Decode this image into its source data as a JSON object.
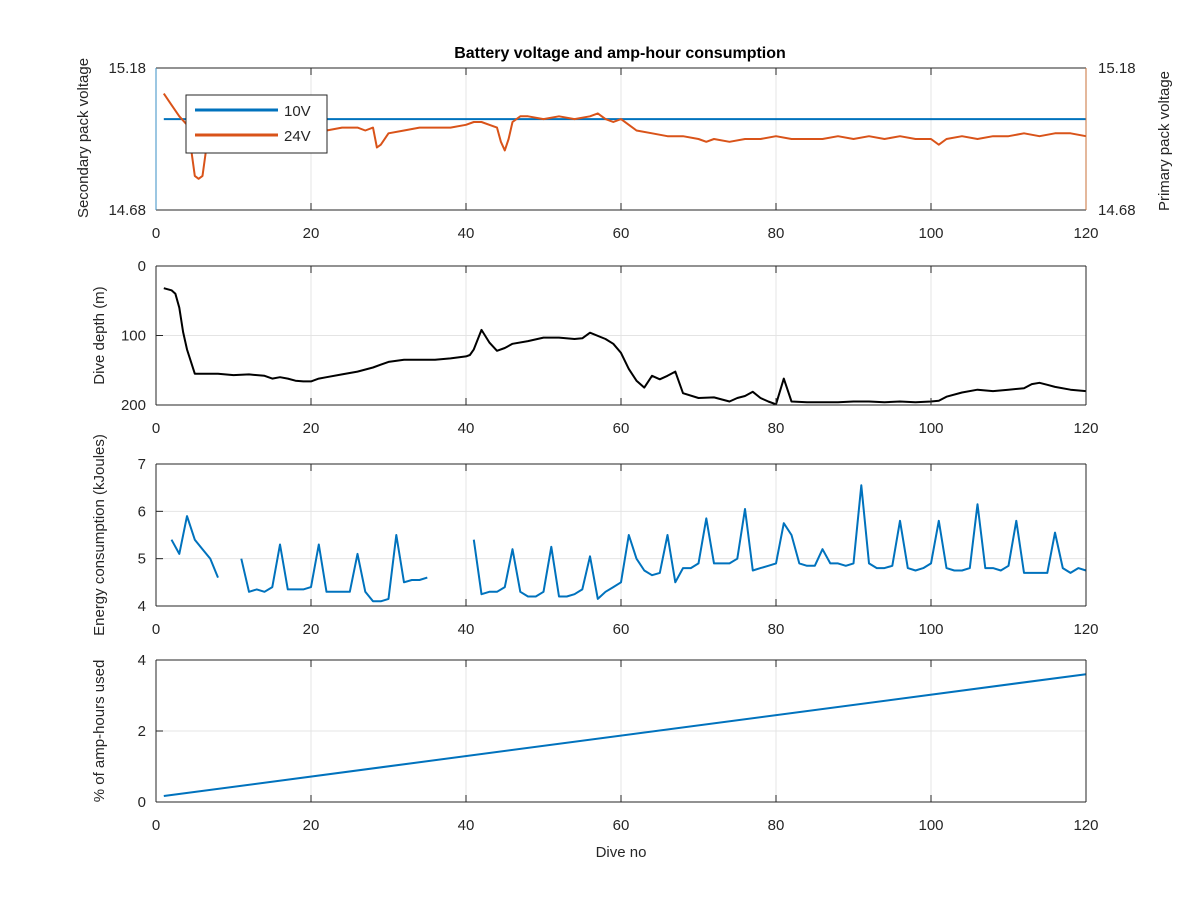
{
  "chart_data": [
    {
      "type": "line",
      "title": "Battery voltage and amp-hour consumption",
      "xlabel": "",
      "ylabel_left": "Secondary pack voltage",
      "ylabel_right": "Primary pack voltage",
      "xlim": [
        0,
        120
      ],
      "ylim_left": [
        14.68,
        15.18
      ],
      "ylim_right": [
        14.68,
        15.18
      ],
      "xticks": [
        "0",
        "20",
        "40",
        "60",
        "80",
        "100",
        "120"
      ],
      "yticks_left": [
        "14.68",
        "15.18"
      ],
      "yticks_right": [
        "14.68",
        "15.18"
      ],
      "grid": true,
      "legend_position": "top-left",
      "left_axis_color": "#3a8fc4",
      "right_axis_color": "#c8703a",
      "series": [
        {
          "name": "10V",
          "axis": "left",
          "color": "#0072bd",
          "x": [
            1,
            120
          ],
          "y": [
            15.0,
            15.0
          ]
        },
        {
          "name": "24V",
          "axis": "right",
          "color": "#d95319",
          "x": [
            1,
            2,
            3,
            4,
            4.5,
            5,
            5.5,
            6,
            6.5,
            7,
            8,
            10,
            12,
            14,
            16,
            18,
            20,
            22,
            24,
            25,
            26,
            27,
            28,
            28.5,
            29,
            30,
            32,
            34,
            36,
            38,
            40,
            41,
            42,
            43,
            44,
            44.5,
            45,
            45.5,
            46,
            47,
            48,
            50,
            52,
            54,
            56,
            57,
            58,
            59,
            60,
            61,
            62,
            64,
            66,
            68,
            70,
            71,
            72,
            74,
            76,
            78,
            80,
            82,
            84,
            86,
            88,
            90,
            92,
            94,
            96,
            98,
            100,
            101,
            102,
            104,
            106,
            108,
            110,
            112,
            114,
            116,
            118,
            120
          ],
          "y": [
            15.09,
            15.05,
            15.01,
            14.98,
            14.9,
            14.8,
            14.79,
            14.8,
            14.9,
            14.97,
            14.98,
            14.97,
            14.96,
            14.97,
            14.96,
            14.97,
            14.97,
            14.96,
            14.97,
            14.97,
            14.97,
            14.96,
            14.97,
            14.9,
            14.91,
            14.95,
            14.96,
            14.97,
            14.97,
            14.97,
            14.98,
            14.99,
            14.99,
            14.98,
            14.97,
            14.92,
            14.89,
            14.93,
            14.99,
            15.01,
            15.01,
            15.0,
            15.01,
            15.0,
            15.01,
            15.02,
            15.0,
            14.99,
            15.0,
            14.98,
            14.96,
            14.95,
            14.94,
            14.94,
            14.93,
            14.92,
            14.93,
            14.92,
            14.93,
            14.93,
            14.94,
            14.93,
            14.93,
            14.93,
            14.94,
            14.93,
            14.94,
            14.93,
            14.94,
            14.93,
            14.93,
            14.91,
            14.93,
            14.94,
            14.93,
            14.94,
            14.94,
            14.95,
            14.94,
            14.95,
            14.95,
            14.94
          ]
        }
      ]
    },
    {
      "type": "line",
      "title": "",
      "xlabel": "",
      "ylabel": "Dive depth (m)",
      "xlim": [
        0,
        120
      ],
      "ylim": [
        0,
        200
      ],
      "y_reversed": true,
      "xticks": [
        "0",
        "20",
        "40",
        "60",
        "80",
        "100",
        "120"
      ],
      "yticks": [
        "0",
        "100",
        "200"
      ],
      "grid": true,
      "series": [
        {
          "color": "#000000",
          "x": [
            1,
            2,
            2.5,
            3,
            3.5,
            4,
            5,
            6,
            8,
            10,
            12,
            14,
            15,
            16,
            17,
            18,
            19,
            20,
            21,
            22,
            24,
            26,
            28,
            30,
            32,
            34,
            36,
            38,
            40,
            40.5,
            41,
            42,
            43,
            44,
            45,
            46,
            48,
            50,
            52,
            54,
            55,
            56,
            58,
            59,
            60,
            61,
            62,
            63,
            64,
            65,
            66,
            67,
            68,
            70,
            72,
            74,
            75,
            76,
            77,
            78,
            79,
            80,
            81,
            82,
            84,
            86,
            88,
            90,
            92,
            94,
            96,
            98,
            100,
            101,
            102,
            104,
            106,
            108,
            110,
            112,
            113,
            114,
            115,
            116,
            118,
            120
          ],
          "y": [
            32,
            35,
            40,
            60,
            95,
            120,
            155,
            155,
            155,
            157,
            156,
            158,
            162,
            160,
            162,
            165,
            166,
            166,
            162,
            160,
            156,
            152,
            146,
            138,
            135,
            135,
            135,
            133,
            130,
            128,
            120,
            92,
            110,
            122,
            118,
            112,
            108,
            103,
            103,
            105,
            104,
            96,
            105,
            112,
            125,
            148,
            165,
            175,
            158,
            163,
            158,
            152,
            183,
            190,
            189,
            195,
            190,
            187,
            181,
            190,
            195,
            199,
            162,
            195,
            196,
            196,
            196,
            195,
            195,
            196,
            195,
            196,
            195,
            194,
            188,
            182,
            178,
            180,
            178,
            176,
            170,
            168,
            171,
            174,
            178,
            180
          ]
        }
      ]
    },
    {
      "type": "line",
      "title": "",
      "xlabel": "",
      "ylabel": "Energy consumption (kJoules)",
      "xlim": [
        0,
        120
      ],
      "ylim": [
        4,
        7
      ],
      "xticks": [
        "0",
        "20",
        "40",
        "60",
        "80",
        "100",
        "120"
      ],
      "yticks": [
        "4",
        "5",
        "6",
        "7"
      ],
      "grid": true,
      "segments": [
        {
          "x": [
            2,
            3,
            4,
            5,
            6,
            7,
            8
          ],
          "y": [
            5.4,
            5.1,
            5.9,
            5.4,
            5.2,
            5.0,
            4.6
          ]
        },
        {
          "x": [
            11,
            12,
            13,
            14,
            15,
            16,
            17,
            18,
            19,
            20,
            21,
            22,
            23,
            24,
            25,
            26,
            27,
            28,
            29,
            30,
            31,
            32,
            33,
            34,
            35
          ],
          "y": [
            5.0,
            4.3,
            4.35,
            4.3,
            4.4,
            5.3,
            4.35,
            4.35,
            4.35,
            4.4,
            5.3,
            4.3,
            4.3,
            4.3,
            4.3,
            5.1,
            4.3,
            4.1,
            4.1,
            4.15,
            5.5,
            4.5,
            4.55,
            4.55,
            4.6
          ]
        },
        {
          "x": [
            41,
            42,
            43,
            44,
            45,
            46,
            47,
            48,
            49,
            50,
            51,
            52,
            53,
            54,
            55,
            56,
            57,
            58,
            59,
            60,
            61,
            62,
            63,
            64,
            65,
            66,
            67,
            68,
            69,
            70,
            71,
            72,
            73,
            74,
            75,
            76,
            77,
            78,
            79,
            80,
            81,
            82,
            83,
            84,
            85,
            86,
            87,
            88,
            89,
            90,
            91,
            92,
            93,
            94,
            95,
            96,
            97,
            98,
            99,
            100,
            101,
            102,
            103,
            104,
            105,
            106,
            107,
            108,
            109,
            110,
            111,
            112,
            113,
            114,
            115,
            116,
            117,
            118,
            119,
            120
          ],
          "y": [
            5.4,
            4.25,
            4.3,
            4.3,
            4.4,
            5.2,
            4.3,
            4.2,
            4.2,
            4.3,
            5.25,
            4.2,
            4.2,
            4.25,
            4.35,
            5.05,
            4.15,
            4.3,
            4.4,
            4.5,
            5.5,
            5.0,
            4.75,
            4.65,
            4.7,
            5.5,
            4.5,
            4.8,
            4.8,
            4.9,
            5.85,
            4.9,
            4.9,
            4.9,
            5.0,
            6.05,
            4.75,
            4.8,
            4.85,
            4.9,
            5.75,
            5.5,
            4.9,
            4.85,
            4.85,
            5.2,
            4.9,
            4.9,
            4.85,
            4.9,
            6.55,
            4.9,
            4.8,
            4.8,
            4.85,
            5.8,
            4.8,
            4.75,
            4.8,
            4.9,
            5.8,
            4.8,
            4.75,
            4.75,
            4.8,
            6.15,
            4.8,
            4.8,
            4.75,
            4.85,
            5.8,
            4.7,
            4.7,
            4.7,
            4.7,
            5.55,
            4.8,
            4.7,
            4.8,
            4.75
          ]
        }
      ],
      "color": "#0072bd"
    },
    {
      "type": "line",
      "title": "",
      "xlabel": "Dive no",
      "ylabel": "% of amp-hours used",
      "xlim": [
        0,
        120
      ],
      "ylim": [
        0,
        4
      ],
      "xticks": [
        "0",
        "20",
        "40",
        "60",
        "80",
        "100",
        "120"
      ],
      "yticks": [
        "0",
        "2",
        "4"
      ],
      "grid": true,
      "series": [
        {
          "color": "#0072bd",
          "x": [
            1,
            120
          ],
          "y": [
            0.17,
            3.6
          ]
        }
      ]
    }
  ]
}
